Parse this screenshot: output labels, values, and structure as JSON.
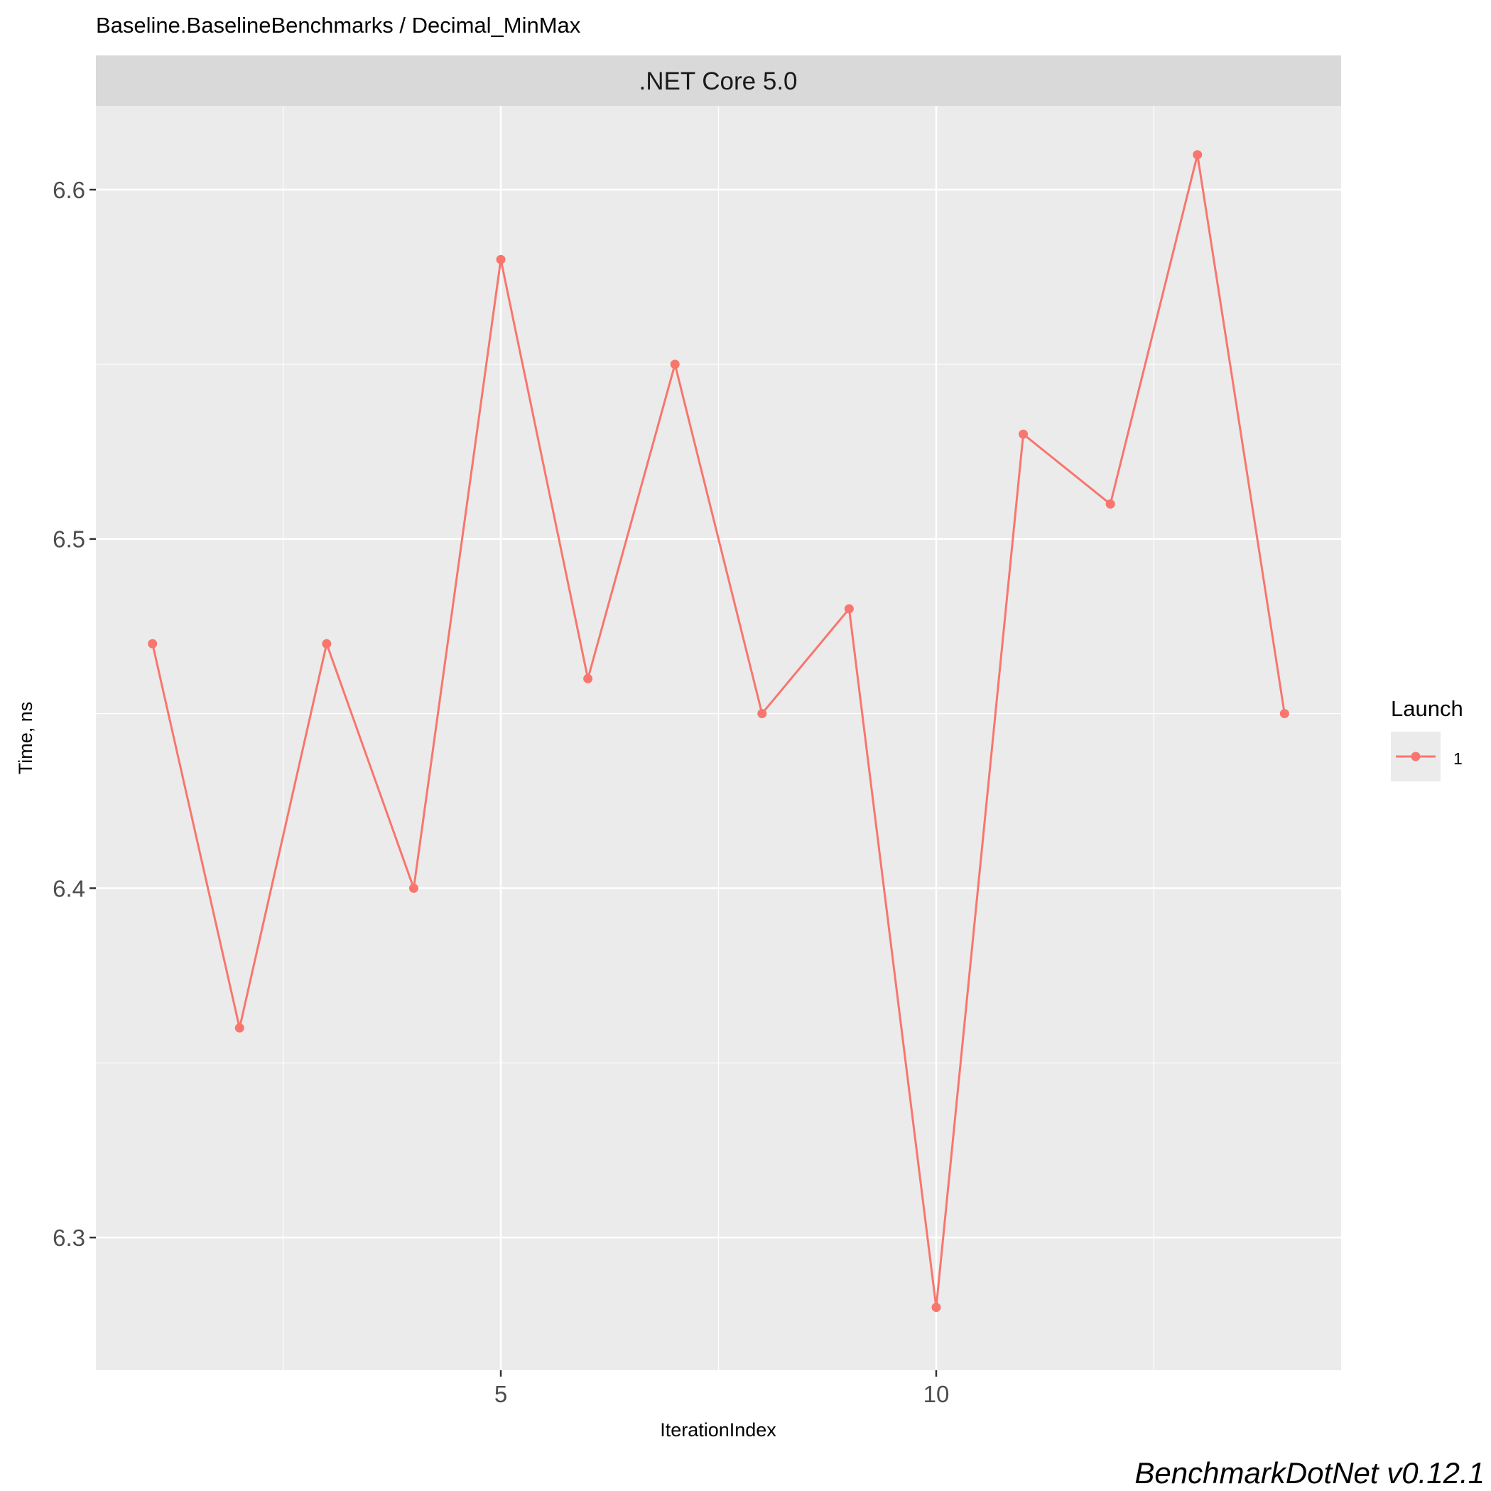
{
  "chart_data": {
    "type": "line",
    "title": "Baseline.BaselineBenchmarks / Decimal_MinMax",
    "facet_label": ".NET Core 5.0",
    "xlabel": "IterationIndex",
    "ylabel": "Time, ns",
    "xlim": [
      0.35,
      14.65
    ],
    "ylim": [
      6.262,
      6.624
    ],
    "x_ticks": [
      5,
      10
    ],
    "x_tick_labels": [
      "5",
      "10"
    ],
    "y_ticks": [
      6.3,
      6.4,
      6.5,
      6.6
    ],
    "y_tick_labels": [
      "6.3",
      "6.4",
      "6.5",
      "6.6"
    ],
    "grid": true,
    "legend_position": "right",
    "legend_title": "Launch",
    "series": [
      {
        "name": "1",
        "color": "#F8766D",
        "x": [
          1,
          2,
          3,
          4,
          5,
          6,
          7,
          8,
          9,
          10,
          11,
          12,
          13,
          14
        ],
        "values": [
          6.47,
          6.36,
          6.47,
          6.4,
          6.58,
          6.46,
          6.55,
          6.45,
          6.48,
          6.28,
          6.53,
          6.51,
          6.61,
          6.45
        ]
      }
    ]
  },
  "footer": {
    "caption": "BenchmarkDotNet v0.12.1"
  },
  "colors": {
    "panel_background": "#EBEBEB",
    "strip_background": "#D9D9D9",
    "grid": "#FFFFFF",
    "series": "#F8766D",
    "tick_text": "#4D4D4D",
    "text": "#000000"
  }
}
